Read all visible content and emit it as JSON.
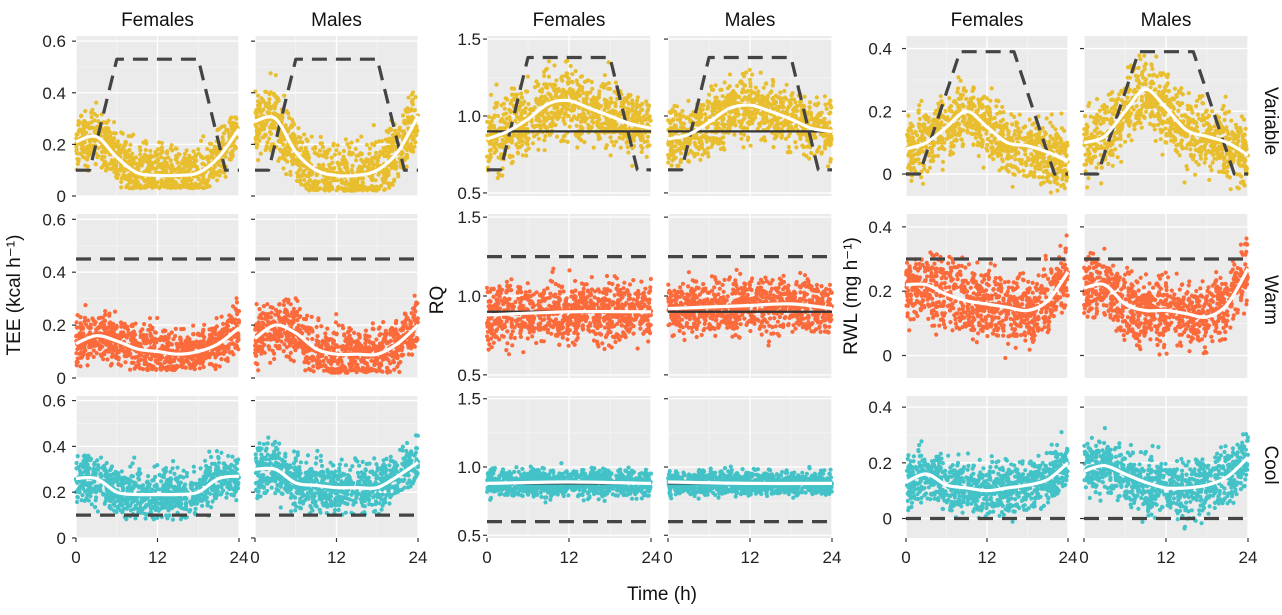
{
  "colors": {
    "Variable": "#e8b400",
    "Warm": "#ff4a10",
    "Cool": "#1ab8bf",
    "panel_bg": "#ebebeb",
    "trend": "#ffffff",
    "limit_line": "#444444"
  },
  "chart_data": {
    "type": "scatter",
    "layout": "faceted grid: 3 columns (TEE, RQ, RWL) x 3 rows (Variable, Warm, Cool) x 2 sexes (Females, Males)",
    "sexes": [
      "Females",
      "Males"
    ],
    "treatments": [
      "Variable",
      "Warm",
      "Cool"
    ],
    "x_axis": {
      "label": "Time (h)",
      "range": [
        0,
        24
      ],
      "ticks": [
        0,
        12,
        24
      ],
      "tick_labels": [
        "0",
        "12",
        "24"
      ]
    },
    "grid": true,
    "columns": [
      {
        "key": "TEE",
        "ylabel": "TEE (kcal h⁻¹)",
        "yrange": [
          0,
          0.62
        ],
        "yticks": [
          0,
          0.2,
          0.4,
          0.6
        ],
        "ytick_labels": [
          "0",
          "0.2",
          "0.4",
          "0.6"
        ],
        "reference": "temperature profile (dashed)",
        "facets": {
          "Variable": {
            "Females": {
              "trend_x": [
                0,
                3,
                6,
                9,
                12,
                15,
                18,
                21,
                24
              ],
              "trend_y": [
                0.21,
                0.23,
                0.15,
                0.09,
                0.08,
                0.08,
                0.09,
                0.15,
                0.26
              ],
              "band": [
                0.03,
                0.45
              ],
              "dashed": {
                "x": [
                  0,
                  2,
                  6,
                  18,
                  22,
                  24
                ],
                "y": [
                  0.1,
                  0.1,
                  0.53,
                  0.53,
                  0.1,
                  0.1
                ]
              }
            },
            "Males": {
              "trend_x": [
                0,
                3,
                6,
                9,
                12,
                15,
                18,
                21,
                24
              ],
              "trend_y": [
                0.29,
                0.3,
                0.17,
                0.1,
                0.08,
                0.08,
                0.1,
                0.17,
                0.31
              ],
              "band": [
                0.02,
                0.55
              ],
              "dashed": {
                "x": [
                  0,
                  2,
                  6,
                  18,
                  22,
                  24
                ],
                "y": [
                  0.1,
                  0.1,
                  0.53,
                  0.53,
                  0.1,
                  0.1
                ]
              }
            }
          },
          "Warm": {
            "Females": {
              "trend_x": [
                0,
                3,
                6,
                9,
                12,
                15,
                18,
                21,
                24
              ],
              "trend_y": [
                0.13,
                0.16,
                0.14,
                0.11,
                0.1,
                0.09,
                0.1,
                0.13,
                0.19
              ],
              "band": [
                0.03,
                0.4
              ],
              "dashed": {
                "x": [
                  0,
                  24
                ],
                "y": [
                  0.45,
                  0.45
                ]
              }
            },
            "Males": {
              "trend_x": [
                0,
                3,
                6,
                9,
                12,
                15,
                18,
                21,
                24
              ],
              "trend_y": [
                0.15,
                0.2,
                0.17,
                0.11,
                0.09,
                0.09,
                0.09,
                0.13,
                0.2
              ],
              "band": [
                0.02,
                0.46
              ],
              "dashed": {
                "x": [
                  0,
                  24
                ],
                "y": [
                  0.45,
                  0.45
                ]
              }
            }
          },
          "Cool": {
            "Females": {
              "trend_x": [
                0,
                3,
                6,
                9,
                12,
                15,
                18,
                21,
                24
              ],
              "trend_y": [
                0.26,
                0.26,
                0.2,
                0.19,
                0.19,
                0.19,
                0.2,
                0.26,
                0.27
              ],
              "band": [
                0.08,
                0.52
              ],
              "dashed": {
                "x": [
                  0,
                  24
                ],
                "y": [
                  0.1,
                  0.1
                ]
              }
            },
            "Males": {
              "trend_x": [
                0,
                3,
                6,
                9,
                12,
                15,
                18,
                21,
                24
              ],
              "trend_y": [
                0.3,
                0.3,
                0.24,
                0.23,
                0.22,
                0.22,
                0.22,
                0.27,
                0.33
              ],
              "band": [
                0.1,
                0.55
              ],
              "dashed": {
                "x": [
                  0,
                  24
                ],
                "y": [
                  0.1,
                  0.1
                ]
              }
            }
          }
        }
      },
      {
        "key": "RQ",
        "ylabel": "RQ",
        "yrange": [
          0.48,
          1.52
        ],
        "yticks": [
          0.5,
          1.0,
          1.5
        ],
        "ytick_labels": [
          "0.5",
          "1.0",
          "1.5"
        ],
        "reference": "RQ = 0.9 (solid)",
        "facets": {
          "Variable": {
            "Females": {
              "trend_x": [
                0,
                3,
                6,
                9,
                12,
                15,
                18,
                21,
                24
              ],
              "trend_y": [
                0.85,
                0.9,
                0.98,
                1.08,
                1.1,
                1.05,
                1.0,
                0.95,
                0.92
              ],
              "band": [
                0.55,
                1.48
              ],
              "solid": 0.9,
              "dashed": {
                "x": [
                  0,
                  2,
                  6,
                  18,
                  22,
                  24
                ],
                "y": [
                  0.65,
                  0.65,
                  1.38,
                  1.38,
                  0.65,
                  0.65
                ]
              }
            },
            "Males": {
              "trend_x": [
                0,
                3,
                6,
                9,
                12,
                15,
                18,
                21,
                24
              ],
              "trend_y": [
                0.85,
                0.88,
                0.96,
                1.05,
                1.07,
                1.03,
                0.98,
                0.92,
                0.9
              ],
              "band": [
                0.6,
                1.42
              ],
              "solid": 0.9,
              "dashed": {
                "x": [
                  0,
                  2,
                  6,
                  18,
                  22,
                  24
                ],
                "y": [
                  0.65,
                  0.65,
                  1.38,
                  1.38,
                  0.65,
                  0.65
                ]
              }
            }
          },
          "Warm": {
            "Females": {
              "trend_x": [
                0,
                12,
                24
              ],
              "trend_y": [
                0.88,
                0.9,
                0.9
              ],
              "band": [
                0.55,
                1.35
              ],
              "solid": 0.9,
              "dashed": {
                "x": [
                  0,
                  24
                ],
                "y": [
                  1.25,
                  1.25
                ]
              }
            },
            "Males": {
              "trend_x": [
                0,
                6,
                12,
                18,
                24
              ],
              "trend_y": [
                0.92,
                0.93,
                0.94,
                0.95,
                0.92
              ],
              "band": [
                0.6,
                1.3
              ],
              "solid": 0.9,
              "dashed": {
                "x": [
                  0,
                  24
                ],
                "y": [
                  1.25,
                  1.25
                ]
              }
            }
          },
          "Cool": {
            "Females": {
              "trend_x": [
                0,
                12,
                24
              ],
              "trend_y": [
                0.88,
                0.89,
                0.88
              ],
              "band": [
                0.7,
                1.12
              ],
              "solid": 0.88,
              "dashed": {
                "x": [
                  0,
                  24
                ],
                "y": [
                  0.6,
                  0.6
                ]
              }
            },
            "Males": {
              "trend_x": [
                0,
                12,
                24
              ],
              "trend_y": [
                0.89,
                0.88,
                0.88
              ],
              "band": [
                0.72,
                1.08
              ],
              "solid": 0.88,
              "dashed": {
                "x": [
                  0,
                  24
                ],
                "y": [
                  0.6,
                  0.6
                ]
              }
            }
          }
        }
      },
      {
        "key": "RWL",
        "ylabel": "RWL (mg h⁻¹)",
        "yrange": [
          -0.07,
          0.44
        ],
        "yticks": [
          0,
          0.2,
          0.4
        ],
        "ytick_labels": [
          "0",
          "0.2",
          "0.4"
        ],
        "reference": "temperature profile (dashed)",
        "facets": {
          "Variable": {
            "Females": {
              "trend_x": [
                0,
                3,
                6,
                9,
                12,
                15,
                18,
                21,
                24
              ],
              "trend_y": [
                0.08,
                0.1,
                0.15,
                0.2,
                0.15,
                0.1,
                0.09,
                0.07,
                0.04
              ],
              "band": [
                -0.06,
                0.35
              ],
              "dashed": {
                "x": [
                  0,
                  2,
                  8,
                  16,
                  22,
                  24
                ],
                "y": [
                  0,
                  0,
                  0.39,
                  0.39,
                  0,
                  0
                ]
              }
            },
            "Males": {
              "trend_x": [
                0,
                3,
                6,
                9,
                12,
                15,
                18,
                21,
                24
              ],
              "trend_y": [
                0.1,
                0.12,
                0.2,
                0.27,
                0.21,
                0.14,
                0.12,
                0.1,
                0.06
              ],
              "band": [
                -0.05,
                0.42
              ],
              "dashed": {
                "x": [
                  0,
                  2,
                  8,
                  16,
                  22,
                  24
                ],
                "y": [
                  0,
                  0,
                  0.39,
                  0.39,
                  0,
                  0
                ]
              }
            }
          },
          "Warm": {
            "Females": {
              "trend_x": [
                0,
                3,
                6,
                9,
                12,
                15,
                18,
                21,
                24
              ],
              "trend_y": [
                0.22,
                0.22,
                0.19,
                0.17,
                0.16,
                0.15,
                0.14,
                0.17,
                0.26
              ],
              "band": [
                -0.03,
                0.4
              ],
              "dashed": {
                "x": [
                  0,
                  24
                ],
                "y": [
                  0.3,
                  0.3
                ]
              }
            },
            "Males": {
              "trend_x": [
                0,
                3,
                6,
                9,
                12,
                15,
                18,
                21,
                24
              ],
              "trend_y": [
                0.21,
                0.22,
                0.16,
                0.14,
                0.14,
                0.13,
                0.12,
                0.16,
                0.27
              ],
              "band": [
                0.0,
                0.42
              ],
              "dashed": {
                "x": [
                  0,
                  24
                ],
                "y": [
                  0.3,
                  0.3
                ]
              }
            }
          },
          "Cool": {
            "Females": {
              "trend_x": [
                0,
                3,
                6,
                9,
                12,
                15,
                18,
                21,
                24
              ],
              "trend_y": [
                0.13,
                0.16,
                0.12,
                0.11,
                0.1,
                0.11,
                0.12,
                0.14,
                0.2
              ],
              "band": [
                -0.03,
                0.34
              ],
              "dashed": {
                "x": [
                  0,
                  24
                ],
                "y": [
                  0,
                  0
                ]
              }
            },
            "Males": {
              "trend_x": [
                0,
                3,
                6,
                9,
                12,
                15,
                18,
                21,
                24
              ],
              "trend_y": [
                0.17,
                0.19,
                0.16,
                0.13,
                0.11,
                0.11,
                0.12,
                0.15,
                0.22
              ],
              "band": [
                -0.04,
                0.38
              ],
              "dashed": {
                "x": [
                  0,
                  24
                ],
                "y": [
                  0,
                  0
                ]
              }
            }
          }
        }
      }
    ]
  }
}
